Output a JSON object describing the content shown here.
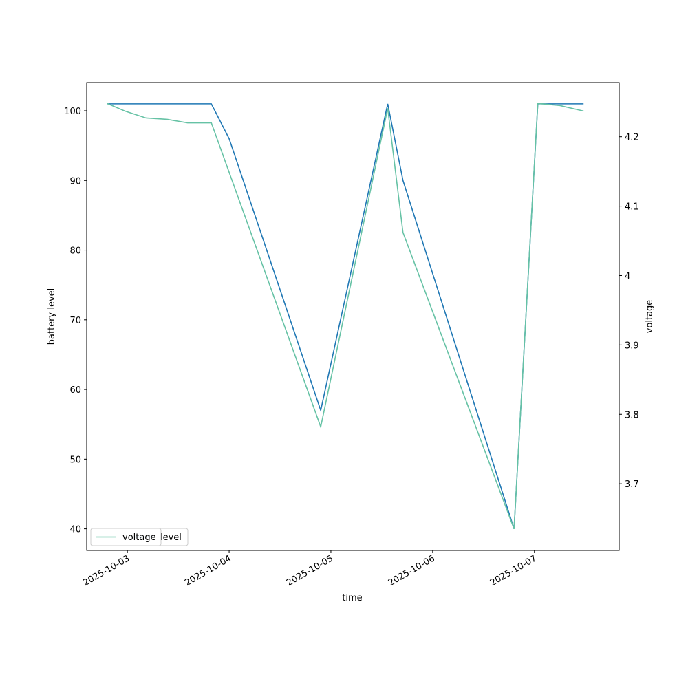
{
  "chart_data": {
    "type": "line",
    "x_label": "time",
    "y_label": "battery level",
    "y2_label": "voltage",
    "xlim": [
      "2025-10-02T14:24",
      "2025-10-07T20:00"
    ],
    "xticks": [
      "2025-10-03",
      "2025-10-04",
      "2025-10-05",
      "2025-10-06",
      "2025-10-07"
    ],
    "ylim": [
      36.9,
      104.05
    ],
    "yticks": [
      40,
      50,
      60,
      70,
      80,
      90,
      100
    ],
    "y2lim": [
      3.604,
      4.278
    ],
    "y2ticks": [
      3.7,
      3.8,
      3.9,
      4.0,
      4.1,
      4.2
    ],
    "legend": "lower left",
    "series": [
      {
        "name": "level",
        "color": "#1f77b4",
        "x": [
          "2025-10-02T19:12",
          "2025-10-03T19:48",
          "2025-10-04T00:00",
          "2025-10-04T21:36",
          "2025-10-05T13:24",
          "2025-10-05T17:00",
          "2025-10-06T19:12",
          "2025-10-07T00:48",
          "2025-10-07T11:36"
        ],
        "values": [
          101,
          101,
          96,
          57,
          101,
          90,
          40,
          101,
          101
        ]
      },
      {
        "name": "voltage",
        "color": "#66c2a5",
        "axis": "y2",
        "x": [
          "2025-10-02T19:12",
          "2025-10-02T23:24",
          "2025-10-03T04:24",
          "2025-10-03T09:24",
          "2025-10-03T14:12",
          "2025-10-03T19:48",
          "2025-10-04T21:36",
          "2025-10-05T13:24",
          "2025-10-05T17:00",
          "2025-10-06T19:12",
          "2025-10-07T00:48",
          "2025-10-07T06:00",
          "2025-10-07T11:36"
        ],
        "values": [
          4.248,
          4.237,
          4.227,
          4.225,
          4.22,
          4.22,
          3.782,
          4.241,
          4.062,
          3.635,
          4.248,
          4.245,
          4.237
        ]
      }
    ]
  }
}
